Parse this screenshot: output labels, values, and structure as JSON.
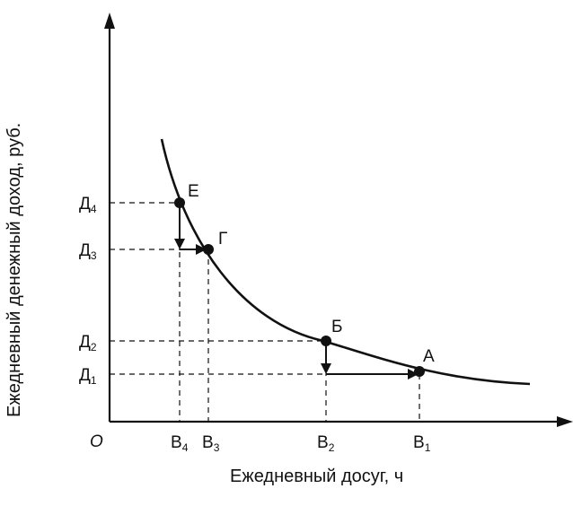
{
  "diagram": {
    "origin_label": "O",
    "x_axis_title": "Ежедневный досуг, ч",
    "y_axis_title": "Ежедневный денежный доход, руб.",
    "x_ticks": [
      {
        "base": "В",
        "sub": "4"
      },
      {
        "base": "В",
        "sub": "3"
      },
      {
        "base": "В",
        "sub": "2"
      },
      {
        "base": "В",
        "sub": "1"
      }
    ],
    "y_ticks": [
      {
        "base": "Д",
        "sub": "4"
      },
      {
        "base": "Д",
        "sub": "3"
      },
      {
        "base": "Д",
        "sub": "2"
      },
      {
        "base": "Д",
        "sub": "1"
      }
    ],
    "points": [
      "Е",
      "Г",
      "Б",
      "А"
    ],
    "colors": {
      "ink": "#111111",
      "background": "#ffffff"
    }
  }
}
